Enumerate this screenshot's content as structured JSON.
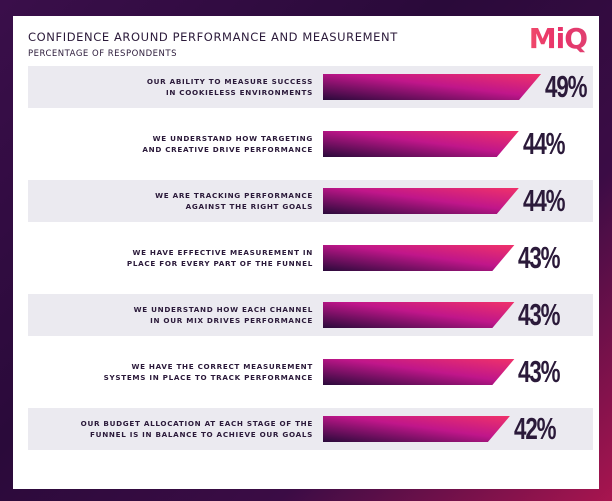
{
  "header": {
    "title": "CONFIDENCE AROUND PERFORMANCE AND MEASUREMENT",
    "subtitle": "PERCENTAGE OF RESPONDENTS",
    "logo": "MiQ"
  },
  "colors": {
    "bar_start": "#2a0a3a",
    "bar_mid": "#c0168a",
    "bar_end": "#f0326a",
    "row_shade": "#ebeaf0",
    "text": "#2b1a3a"
  },
  "chart_data": {
    "type": "bar",
    "orientation": "horizontal",
    "title": "CONFIDENCE AROUND PERFORMANCE AND MEASUREMENT",
    "subtitle": "PERCENTAGE OF RESPONDENTS",
    "unit": "%",
    "categories": [
      "OUR ABILITY TO MEASURE SUCCESS\nIN COOKIELESS ENVIRONMENTS",
      "WE UNDERSTAND HOW TARGETING\nAND CREATIVE DRIVE PERFORMANCE",
      "WE ARE TRACKING PERFORMANCE\nAGAINST THE RIGHT GOALS",
      "WE HAVE EFFECTIVE MEASUREMENT IN\nPLACE FOR EVERY PART OF THE FUNNEL",
      "WE UNDERSTAND HOW EACH CHANNEL\nIN OUR MIX DRIVES PERFORMANCE",
      "WE HAVE THE CORRECT MEASUREMENT\nSYSTEMS IN PLACE TO TRACK PERFORMANCE",
      "OUR BUDGET ALLOCATION AT EACH STAGE OF THE\nFUNNEL IS IN BALANCE TO ACHIEVE OUR GOALS"
    ],
    "values": [
      49,
      44,
      44,
      43,
      43,
      43,
      42
    ],
    "value_labels": [
      "49%",
      "44%",
      "44%",
      "43%",
      "43%",
      "43%",
      "42%"
    ]
  }
}
